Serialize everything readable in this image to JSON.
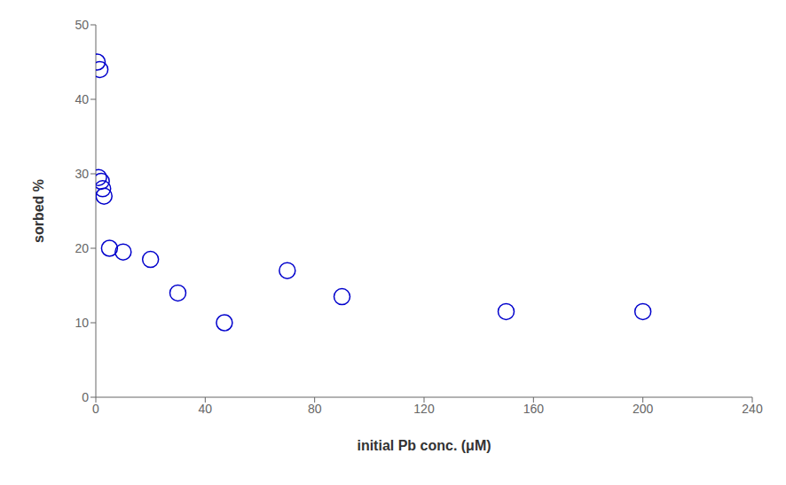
{
  "chart_data": {
    "type": "scatter",
    "x": [
      0.5,
      1.5,
      1.0,
      2.0,
      2.5,
      3.0,
      5.0,
      10.0,
      20.0,
      30.0,
      47.0,
      70.0,
      90.0,
      150.0,
      200.0
    ],
    "values": [
      45.0,
      44.0,
      29.5,
      29.0,
      28.0,
      27.0,
      20.0,
      19.5,
      18.5,
      14.0,
      10.0,
      17.0,
      13.5,
      11.5,
      11.5
    ],
    "xlabel": "initial Pb conc. (μM)",
    "ylabel": "sorbed %",
    "xlim": [
      0,
      240
    ],
    "ylim": [
      0,
      50
    ],
    "xticks": [
      0,
      40,
      80,
      120,
      160,
      200,
      240
    ],
    "yticks": [
      0,
      10,
      20,
      30,
      40,
      50
    ],
    "color": "#0000cc",
    "marker": "circle",
    "grid": false
  }
}
